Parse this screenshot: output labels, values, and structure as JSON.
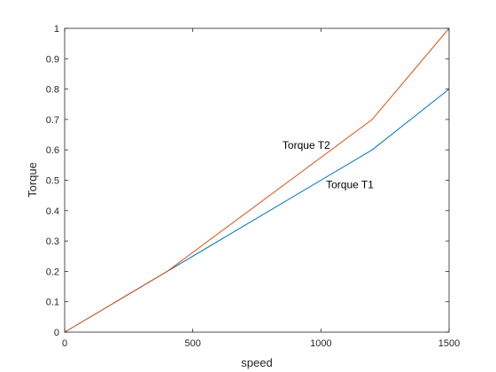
{
  "chart_data": {
    "type": "line",
    "xlabel": "speed",
    "ylabel": "Torque",
    "xlim": [
      0,
      1500
    ],
    "ylim": [
      0,
      1
    ],
    "xticks": [
      0,
      500,
      1000,
      1500
    ],
    "yticks": [
      0,
      0.1,
      0.2,
      0.3,
      0.4,
      0.5,
      0.6,
      0.7,
      0.8,
      0.9,
      1
    ],
    "xtick_labels": [
      "0",
      "500",
      "1000",
      "1500"
    ],
    "ytick_labels": [
      "0",
      "0.1",
      "0.2",
      "0.3",
      "0.4",
      "0.5",
      "0.6",
      "0.7",
      "0.8",
      "0.9",
      "1"
    ],
    "grid": false,
    "box": true,
    "series": [
      {
        "name": "",
        "color": "#0072BD",
        "x": [
          0,
          400,
          1200,
          1500
        ],
        "y": [
          0,
          0.2,
          0.6,
          0.8
        ]
      },
      {
        "name": "",
        "color": "#D95319",
        "x": [
          0,
          400,
          1200,
          1500
        ],
        "y": [
          0,
          0.2,
          0.7,
          1.0
        ]
      }
    ],
    "annotations": [
      {
        "text": "Torque T2",
        "x": 850,
        "y": 0.615
      },
      {
        "text": "Torque T1",
        "x": 1020,
        "y": 0.485
      }
    ]
  }
}
